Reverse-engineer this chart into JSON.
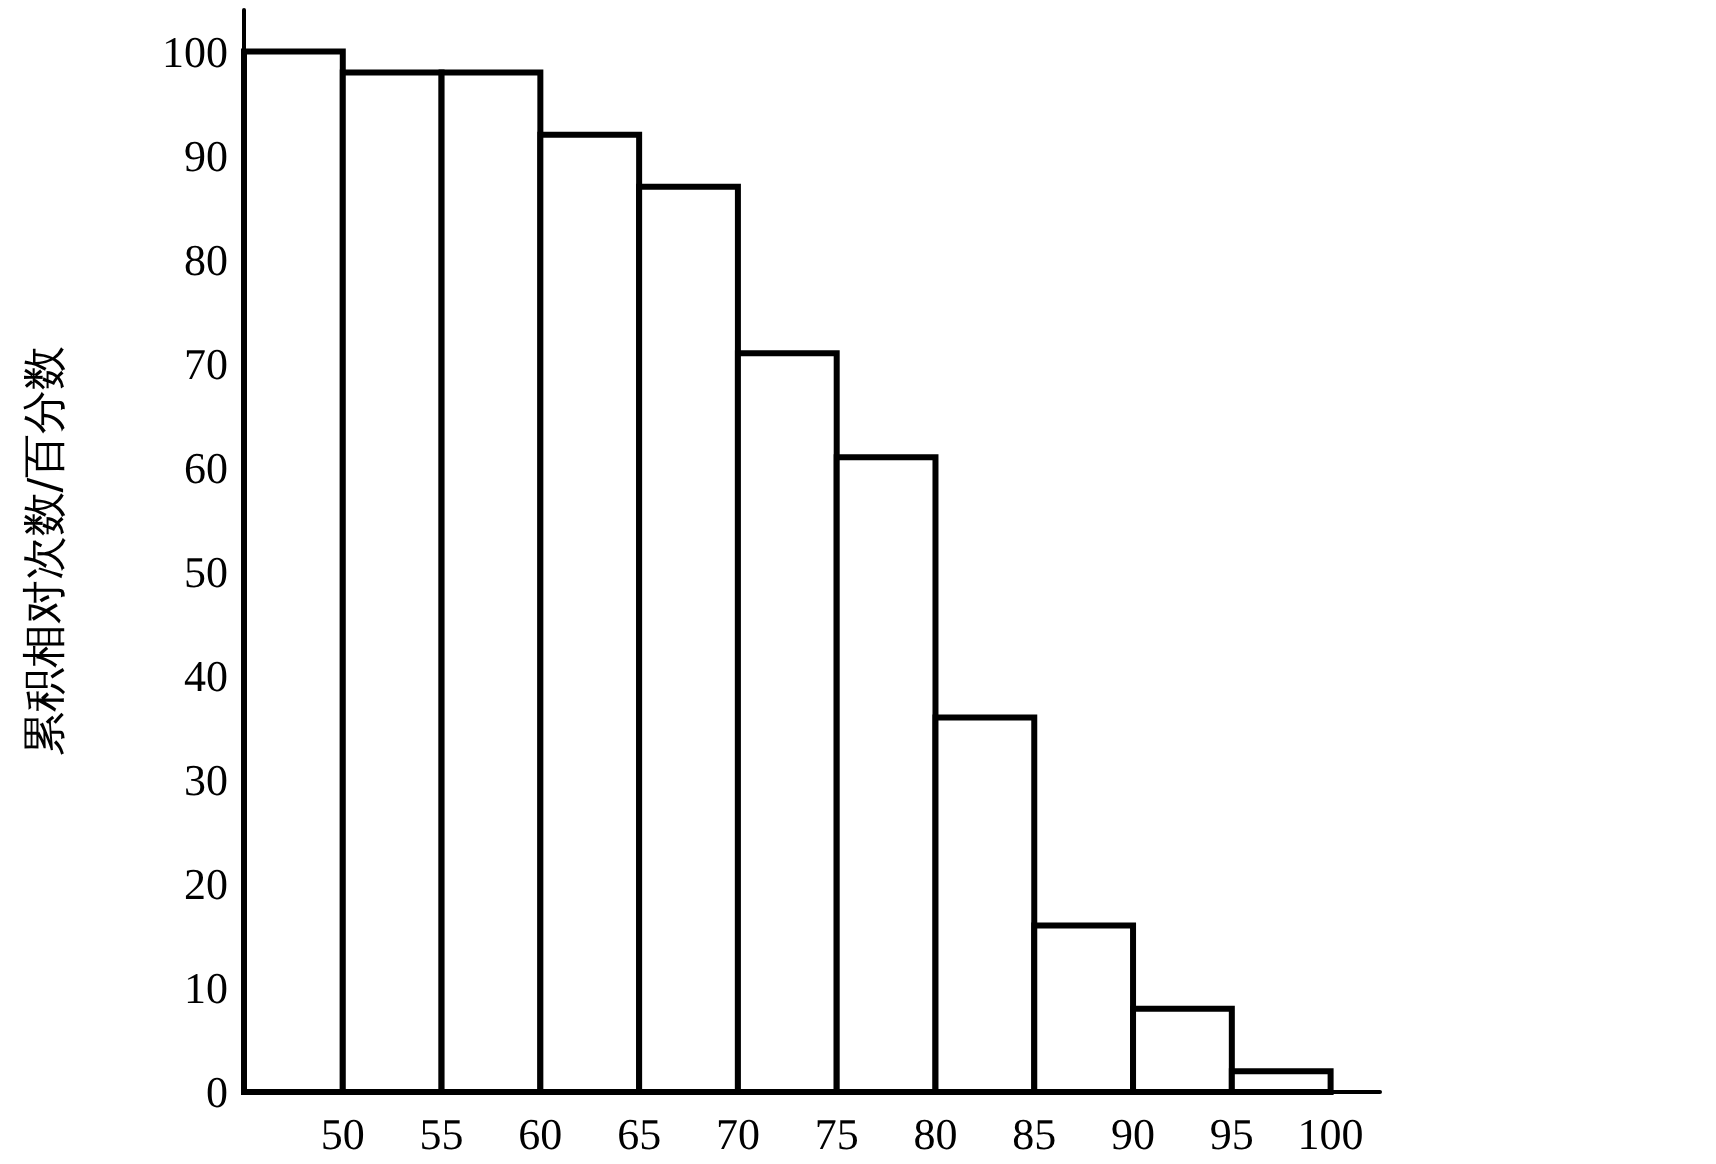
{
  "chart_data": {
    "type": "histogram",
    "ylabel": "累积相对次数/百分数",
    "bins": [
      45,
      50,
      55,
      60,
      65,
      70,
      75,
      80,
      85,
      90,
      95,
      100
    ],
    "values": [
      100,
      98,
      98,
      92,
      87,
      71,
      61,
      36,
      16,
      8,
      2
    ],
    "color": "#ffffff",
    "xlim": [
      45,
      102.5
    ],
    "xticks": [
      50,
      55,
      60,
      65,
      70,
      75,
      80,
      85,
      90,
      95,
      100
    ],
    "ylim": [
      0,
      104
    ],
    "yticks": [
      0,
      10,
      20,
      30,
      40,
      50,
      60,
      70,
      80,
      90,
      100
    ],
    "grid": false
  }
}
